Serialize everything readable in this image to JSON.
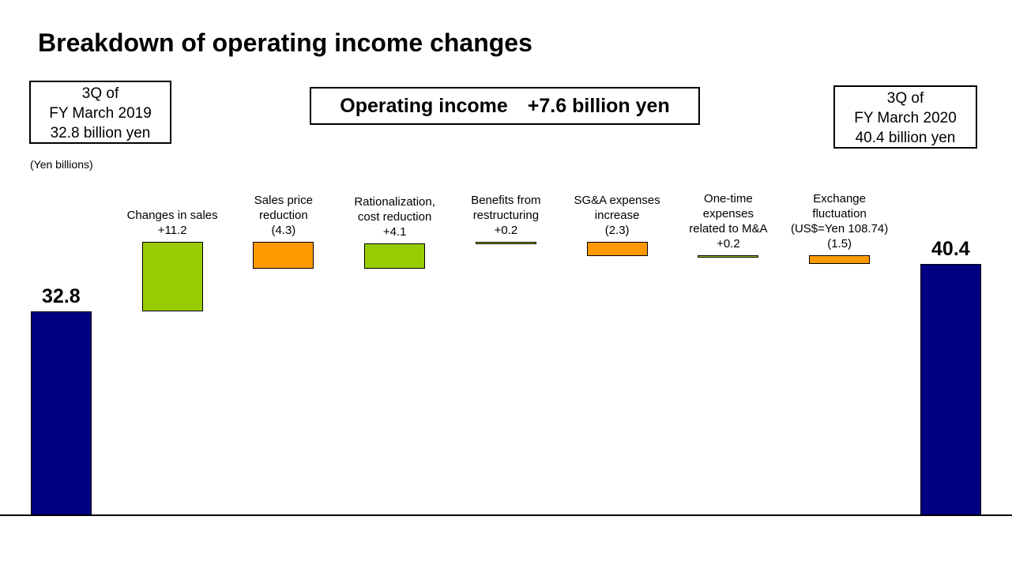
{
  "chart_data": {
    "type": "waterfall",
    "title": "Breakdown of operating income changes",
    "subtitle": "Operating income　+7.6 billion yen",
    "annotations": [
      "3Q of\nFY March 2019\n32.8 billion  yen",
      "3Q of\nFY March 2020\n40.4 billion  yen"
    ],
    "y_label": "(Yen billions)",
    "categories": [
      null,
      "Changes in sales",
      "Sales price\nreduction",
      "Rationalization,\n cost reduction",
      "Benefits from\nrestructuring",
      "SG&A expenses\nincrease",
      "One-time\nexpenses\nrelated to M&A",
      "Exchange\nfluctuation\n(US$=Yen 108.74)",
      null
    ],
    "values": [
      32.8,
      11.2,
      -4.3,
      4.1,
      0.2,
      -2.3,
      0.2,
      -1.5,
      40.4
    ],
    "value_labels": [
      "32.8",
      "+11.2",
      "(4.3)",
      "+4.1",
      "+0.2",
      "(2.3)",
      "+0.2",
      "(1.5)",
      "40.4"
    ],
    "colors": {
      "total": "#000080",
      "increase": "#99cc00",
      "decrease": "#ff9900"
    },
    "ylim": [
      0,
      44
    ]
  }
}
